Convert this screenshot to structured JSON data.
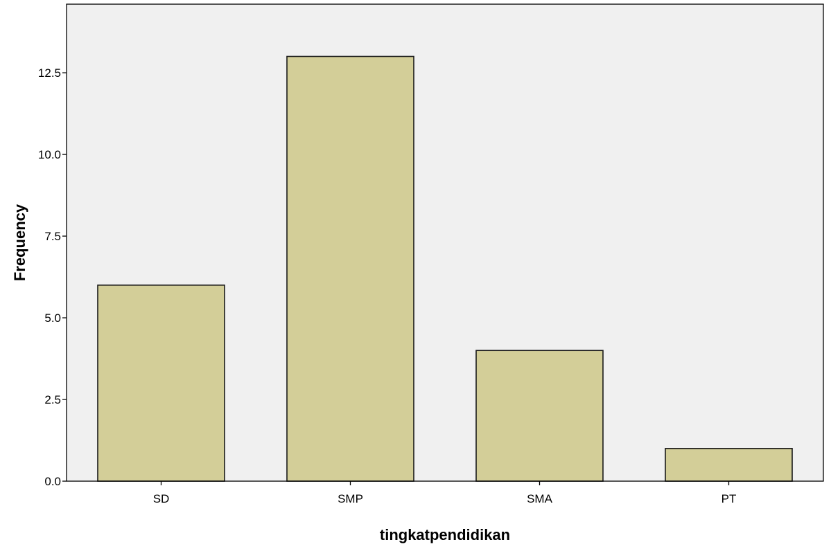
{
  "chart_data": {
    "type": "bar",
    "categories": [
      "SD",
      "SMP",
      "SMA",
      "PT"
    ],
    "values": [
      6,
      13,
      4,
      1
    ],
    "title": "",
    "xlabel": "tingkatpendidikan",
    "ylabel": "Frequency",
    "ylim": [
      0,
      14.6
    ],
    "yticks": [
      0,
      2.5,
      5,
      7.5,
      10,
      12.5
    ],
    "ytick_labels": [
      "0.0",
      "2.5",
      "5.0",
      "7.5",
      "10.0",
      "12.5"
    ],
    "grid": false,
    "legend": "none",
    "colors": {
      "bar_fill": "#D3CE98",
      "bar_stroke": "#1a1a1a",
      "plot_background": "#F0F0F0",
      "axis": "#000000"
    }
  }
}
